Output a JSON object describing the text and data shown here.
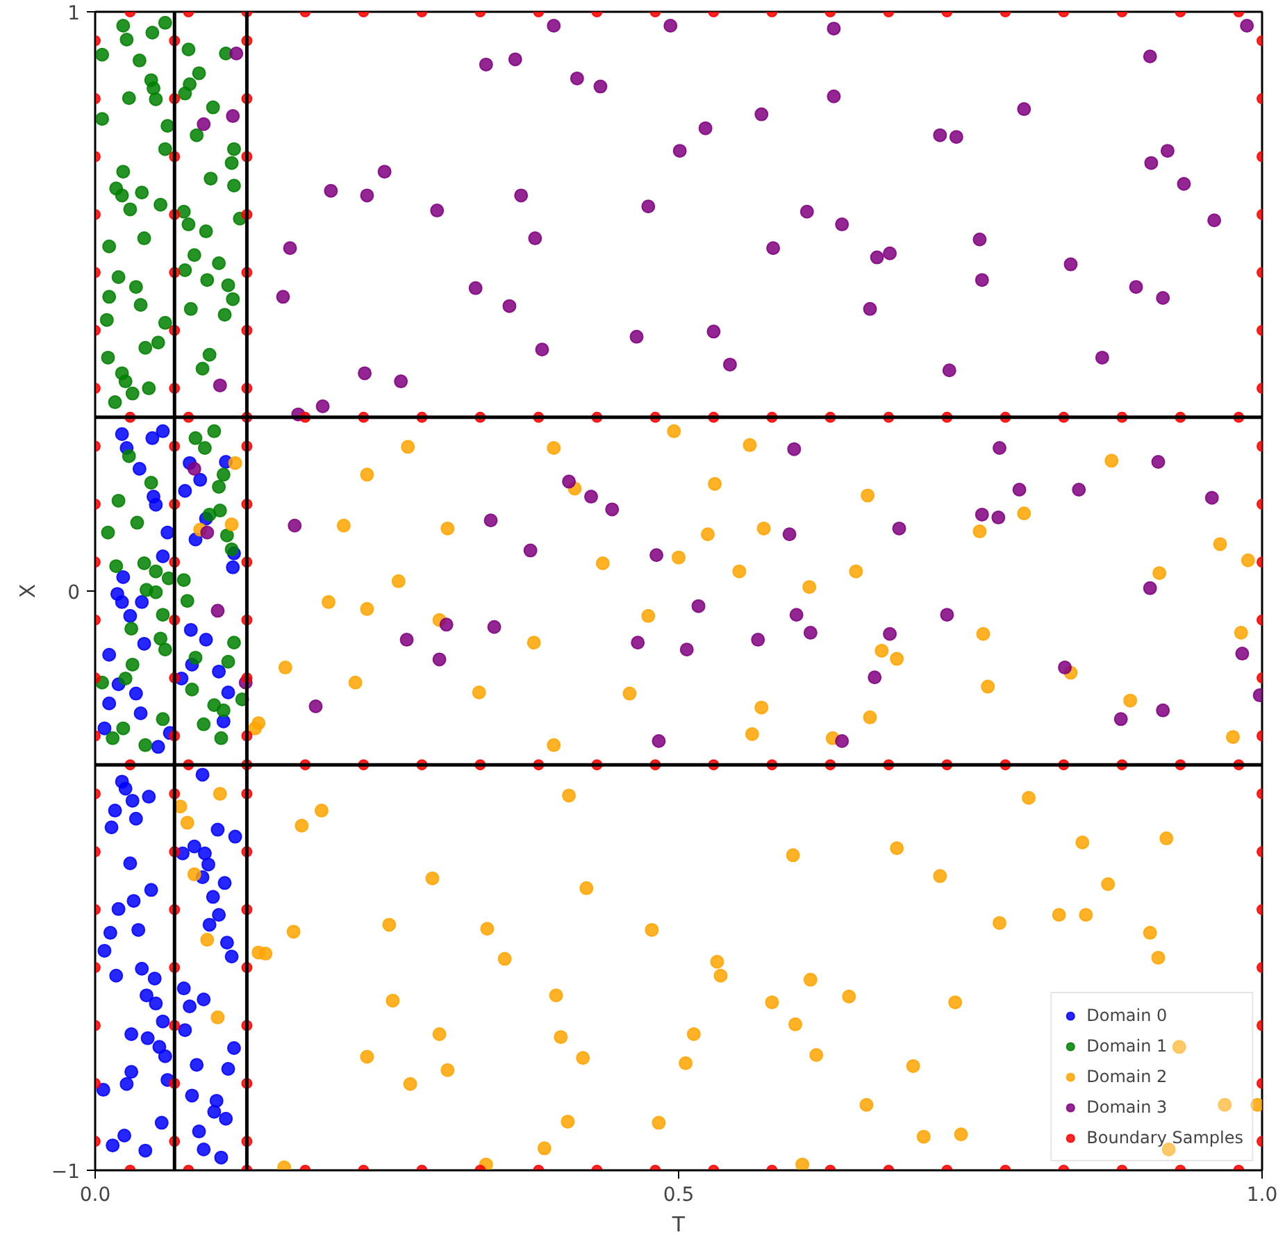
{
  "chart_data": {
    "type": "scatter",
    "xlabel": "T",
    "ylabel": "X",
    "xlim": [
      0,
      1
    ],
    "ylim": [
      -1,
      1
    ],
    "xticks": [
      {
        "value": 0,
        "label": "0.0"
      },
      0.5,
      {
        "value": 1,
        "label": "1.0"
      }
    ],
    "yticks": [
      {
        "value": -1,
        "label": "−1"
      },
      0,
      1
    ],
    "grid": false,
    "legend": "bottom right",
    "marker": "circle",
    "ref_lines": [
      {
        "axis": "x",
        "value": 0.068,
        "color": "#000000"
      },
      {
        "axis": "x",
        "value": 0.13,
        "color": "#000000"
      },
      {
        "axis": "y",
        "value": 0.3,
        "color": "#000000"
      },
      {
        "axis": "y",
        "value": -0.3,
        "color": "#000000"
      }
    ],
    "series": [
      {
        "name": "Domain 0",
        "color": "#0000ff",
        "x": [
          0.019,
          0.023,
          0.04,
          0.03,
          0.042,
          0.012,
          0.02,
          0.035,
          0.012,
          0.039,
          0.008,
          0.054,
          0.064,
          0.023,
          0.049,
          0.058,
          0.027,
          0.038,
          0.05,
          0.052,
          0.062,
          0.058,
          0.024,
          0.081,
          0.09,
          0.077,
          0.112,
          0.095,
          0.086,
          0.119,
          0.118,
          0.082,
          0.095,
          0.083,
          0.106,
          0.074,
          0.114,
          0.11,
          0.023,
          0.026,
          0.046,
          0.032,
          0.017,
          0.035,
          0.014,
          0.03,
          0.048,
          0.02,
          0.033,
          0.037,
          0.013,
          0.008,
          0.04,
          0.018,
          0.051,
          0.044,
          0.052,
          0.058,
          0.031,
          0.045,
          0.055,
          0.06,
          0.031,
          0.027,
          0.007,
          0.062,
          0.057,
          0.025,
          0.015,
          0.043,
          0.092,
          0.105,
          0.12,
          0.085,
          0.094,
          0.097,
          0.075,
          0.092,
          0.111,
          0.101,
          0.106,
          0.098,
          0.113,
          0.117,
          0.076,
          0.093,
          0.081,
          0.077,
          0.119,
          0.087,
          0.114,
          0.083,
          0.104,
          0.102,
          0.112,
          0.089,
          0.093,
          0.108
        ],
        "values": [
          -0.005,
          -0.019,
          -0.019,
          -0.043,
          -0.091,
          -0.11,
          -0.161,
          -0.177,
          -0.194,
          -0.211,
          -0.237,
          -0.269,
          -0.245,
          0.271,
          0.264,
          0.276,
          0.247,
          0.211,
          0.163,
          0.149,
          0.101,
          0.06,
          0.024,
          0.221,
          0.192,
          0.173,
          0.223,
          0.125,
          0.089,
          0.065,
          0.041,
          -0.067,
          -0.084,
          -0.127,
          -0.139,
          -0.151,
          -0.175,
          -0.225,
          -0.329,
          -0.341,
          -0.355,
          -0.362,
          -0.379,
          -0.393,
          -0.408,
          -0.47,
          -0.516,
          -0.549,
          -0.535,
          -0.585,
          -0.59,
          -0.621,
          -0.652,
          -0.664,
          -0.669,
          -0.698,
          -0.712,
          -0.743,
          -0.765,
          -0.772,
          -0.787,
          -0.803,
          -0.83,
          -0.851,
          -0.861,
          -0.844,
          -0.918,
          -0.94,
          -0.957,
          -0.966,
          -0.317,
          -0.412,
          -0.424,
          -0.441,
          -0.453,
          -0.472,
          -0.453,
          -0.494,
          -0.504,
          -0.528,
          -0.559,
          -0.576,
          -0.607,
          -0.631,
          -0.686,
          -0.705,
          -0.717,
          -0.758,
          -0.789,
          -0.818,
          -0.825,
          -0.871,
          -0.88,
          -0.899,
          -0.911,
          -0.933,
          -0.964,
          -0.978
        ]
      },
      {
        "name": "Domain 1",
        "color": "#008000",
        "x": [
          0.024,
          0.06,
          0.027,
          0.049,
          0.006,
          0.038,
          0.048,
          0.05,
          0.029,
          0.052,
          0.006,
          0.062,
          0.06,
          0.024,
          0.018,
          0.023,
          0.04,
          0.03,
          0.056,
          0.042,
          0.012,
          0.02,
          0.035,
          0.012,
          0.039,
          0.01,
          0.06,
          0.054,
          0.043,
          0.011,
          0.023,
          0.026,
          0.032,
          0.046,
          0.017,
          0.08,
          0.112,
          0.089,
          0.081,
          0.077,
          0.101,
          0.087,
          0.119,
          0.117,
          0.099,
          0.119,
          0.076,
          0.08,
          0.095,
          0.124,
          0.085,
          0.106,
          0.077,
          0.096,
          0.114,
          0.118,
          0.082,
          0.111,
          0.098,
          0.092,
          0.029,
          0.02,
          0.048,
          0.036,
          0.011,
          0.018,
          0.042,
          0.052,
          0.063,
          0.044,
          0.052,
          0.058,
          0.031,
          0.056,
          0.06,
          0.032,
          0.006,
          0.026,
          0.058,
          0.024,
          0.015,
          0.043,
          0.086,
          0.102,
          0.094,
          0.11,
          0.106,
          0.098,
          0.107,
          0.113,
          0.117,
          0.076,
          0.079,
          0.086,
          0.114,
          0.083,
          0.102,
          0.11,
          0.093,
          0.108,
          0.119,
          0.126
        ],
        "values": [
          0.976,
          0.981,
          0.952,
          0.964,
          0.926,
          0.916,
          0.882,
          0.868,
          0.851,
          0.849,
          0.815,
          0.803,
          0.763,
          0.724,
          0.695,
          0.683,
          0.688,
          0.659,
          0.667,
          0.609,
          0.595,
          0.542,
          0.525,
          0.508,
          0.494,
          0.468,
          0.463,
          0.429,
          0.42,
          0.403,
          0.376,
          0.362,
          0.341,
          0.35,
          0.326,
          0.935,
          0.928,
          0.894,
          0.875,
          0.859,
          0.835,
          0.787,
          0.763,
          0.739,
          0.712,
          0.7,
          0.655,
          0.633,
          0.621,
          0.643,
          0.58,
          0.566,
          0.554,
          0.537,
          0.528,
          0.504,
          0.487,
          0.477,
          0.408,
          0.384,
          0.233,
          0.156,
          0.187,
          0.118,
          0.101,
          0.043,
          0.048,
          0.034,
          0.022,
          0.002,
          -0.002,
          -0.041,
          -0.065,
          -0.082,
          -0.101,
          -0.127,
          -0.158,
          -0.151,
          -0.221,
          -0.237,
          -0.254,
          -0.266,
          0.264,
          0.276,
          0.247,
          0.201,
          0.18,
          0.132,
          0.139,
          0.096,
          0.072,
          0.019,
          -0.017,
          -0.115,
          -0.122,
          -0.17,
          -0.197,
          -0.206,
          -0.23,
          -0.254,
          -0.089,
          -0.187
        ]
      },
      {
        "name": "Domain 2",
        "color": "#ffa500",
        "x": [
          0.268,
          0.393,
          0.496,
          0.561,
          0.871,
          0.233,
          0.411,
          0.531,
          0.662,
          0.758,
          0.796,
          0.964,
          0.213,
          0.302,
          0.525,
          0.573,
          0.988,
          0.435,
          0.5,
          0.552,
          0.2,
          0.233,
          0.26,
          0.652,
          0.912,
          0.295,
          0.474,
          0.612,
          0.376,
          0.687,
          0.761,
          0.982,
          0.223,
          0.329,
          0.458,
          0.674,
          0.836,
          0.163,
          0.571,
          0.765,
          0.664,
          0.887,
          0.393,
          0.563,
          0.632,
          0.975,
          0.14,
          0.194,
          0.177,
          0.406,
          0.8,
          0.687,
          0.598,
          0.421,
          0.289,
          0.846,
          0.918,
          0.724,
          0.868,
          0.826,
          0.849,
          0.336,
          0.775,
          0.17,
          0.252,
          0.477,
          0.904,
          0.14,
          0.146,
          0.351,
          0.533,
          0.613,
          0.911,
          0.536,
          0.646,
          0.737,
          0.395,
          0.255,
          0.58,
          0.399,
          0.295,
          0.513,
          0.6,
          0.701,
          0.618,
          0.233,
          0.302,
          0.506,
          0.418,
          0.27,
          0.929,
          0.661,
          0.968,
          0.996,
          0.405,
          0.483,
          0.742,
          0.71,
          0.335,
          0.606,
          0.162,
          0.385,
          0.92,
          0.107,
          0.079,
          0.085,
          0.096,
          0.105,
          0.073,
          0.12,
          0.117,
          0.09,
          0.137
        ],
        "values": [
          0.249,
          0.247,
          0.276,
          0.252,
          0.225,
          0.201,
          0.177,
          0.185,
          0.165,
          0.103,
          0.134,
          0.081,
          0.113,
          0.108,
          0.098,
          0.108,
          0.053,
          0.048,
          0.058,
          0.034,
          -0.019,
          -0.031,
          0.017,
          0.034,
          0.031,
          -0.05,
          -0.043,
          0.007,
          -0.089,
          -0.117,
          -0.074,
          -0.072,
          -0.158,
          -0.175,
          -0.177,
          -0.103,
          -0.141,
          -0.132,
          -0.201,
          -0.165,
          -0.218,
          -0.189,
          -0.266,
          -0.247,
          -0.254,
          -0.252,
          -0.228,
          -0.379,
          -0.405,
          -0.353,
          -0.357,
          -0.444,
          -0.456,
          -0.513,
          -0.496,
          -0.434,
          -0.427,
          -0.492,
          -0.506,
          -0.559,
          -0.559,
          -0.583,
          -0.573,
          -0.588,
          -0.576,
          -0.585,
          -0.59,
          -0.624,
          -0.626,
          -0.635,
          -0.64,
          -0.671,
          -0.633,
          -0.664,
          -0.7,
          -0.71,
          -0.698,
          -0.707,
          -0.71,
          -0.77,
          -0.765,
          -0.765,
          -0.748,
          -0.82,
          -0.801,
          -0.804,
          -0.827,
          -0.815,
          -0.806,
          -0.851,
          -0.787,
          -0.887,
          -0.887,
          -0.887,
          -0.916,
          -0.918,
          -0.938,
          -0.942,
          -0.99,
          -0.99,
          -0.995,
          -0.962,
          -0.964,
          -0.35,
          -0.4,
          -0.489,
          -0.602,
          -0.736,
          -0.372,
          0.221,
          0.115,
          0.106,
          -0.237
        ]
      },
      {
        "name": "Domain 3",
        "color": "#800080",
        "x": [
          0.493,
          0.393,
          0.633,
          0.904,
          0.36,
          0.335,
          0.413,
          0.433,
          0.571,
          0.796,
          0.633,
          0.523,
          0.501,
          0.724,
          0.738,
          0.919,
          0.905,
          0.933,
          0.248,
          0.202,
          0.233,
          0.365,
          0.293,
          0.474,
          0.61,
          0.64,
          0.959,
          0.377,
          0.167,
          0.581,
          0.67,
          0.681,
          0.758,
          0.76,
          0.836,
          0.892,
          0.915,
          0.161,
          0.326,
          0.355,
          0.664,
          0.383,
          0.464,
          0.53,
          0.544,
          0.732,
          0.231,
          0.262,
          0.174,
          0.195,
          0.863,
          0.987,
          0.599,
          0.775,
          0.911,
          0.406,
          0.425,
          0.792,
          0.843,
          0.171,
          0.339,
          0.443,
          0.373,
          0.481,
          0.595,
          0.689,
          0.76,
          0.774,
          0.957,
          0.904,
          0.342,
          0.301,
          0.517,
          0.601,
          0.613,
          0.681,
          0.73,
          0.267,
          0.295,
          0.465,
          0.507,
          0.568,
          0.668,
          0.831,
          0.983,
          0.998,
          0.879,
          0.915,
          0.189,
          0.483,
          0.64,
          0.121,
          0.118,
          0.093,
          0.107,
          0.085,
          0.096,
          0.129,
          0.105
        ],
        "values": [
          0.976,
          0.976,
          0.971,
          0.923,
          0.918,
          0.909,
          0.885,
          0.871,
          0.823,
          0.832,
          0.854,
          0.799,
          0.76,
          0.787,
          0.784,
          0.76,
          0.739,
          0.703,
          0.724,
          0.691,
          0.683,
          0.683,
          0.657,
          0.664,
          0.655,
          0.633,
          0.64,
          0.609,
          0.592,
          0.592,
          0.576,
          0.583,
          0.607,
          0.537,
          0.564,
          0.525,
          0.506,
          0.508,
          0.523,
          0.492,
          0.487,
          0.417,
          0.439,
          0.448,
          0.391,
          0.381,
          0.376,
          0.362,
          0.305,
          0.319,
          0.403,
          0.976,
          0.245,
          0.247,
          0.223,
          0.189,
          0.163,
          0.175,
          0.175,
          0.113,
          0.122,
          0.141,
          0.07,
          0.062,
          0.098,
          0.108,
          0.132,
          0.127,
          0.161,
          0.005,
          -0.062,
          -0.058,
          -0.026,
          -0.041,
          -0.072,
          -0.074,
          -0.041,
          -0.084,
          -0.118,
          -0.089,
          -0.101,
          -0.084,
          -0.149,
          -0.132,
          -0.108,
          -0.18,
          -0.221,
          -0.206,
          -0.199,
          -0.259,
          -0.259,
          0.928,
          0.82,
          0.806,
          0.355,
          0.211,
          0.101,
          -0.158,
          -0.034
        ]
      },
      {
        "name": "Boundary Samples",
        "color": "#ff0000",
        "x": [
          0,
          0,
          0,
          0,
          0,
          0,
          0,
          0,
          0,
          0,
          0,
          0,
          0,
          0,
          0,
          0,
          0,
          0,
          0,
          0,
          0.068,
          0.068,
          0.068,
          0.068,
          0.068,
          0.068,
          0.068,
          0.068,
          0.068,
          0.068,
          0.068,
          0.068,
          0.068,
          0.068,
          0.068,
          0.068,
          0.068,
          0.068,
          0.068,
          0.068,
          0.13,
          0.13,
          0.13,
          0.13,
          0.13,
          0.13,
          0.13,
          0.13,
          0.13,
          0.13,
          0.13,
          0.13,
          0.13,
          0.13,
          0.13,
          0.13,
          0.13,
          0.13,
          0.13,
          0.13,
          1,
          1,
          1,
          1,
          1,
          1,
          1,
          1,
          1,
          1,
          1,
          1,
          1,
          1,
          1,
          1,
          1,
          1,
          1,
          1,
          0.03,
          0.08,
          0.13,
          0.18,
          0.23,
          0.28,
          0.33,
          0.38,
          0.43,
          0.48,
          0.53,
          0.58,
          0.63,
          0.68,
          0.73,
          0.78,
          0.83,
          0.88,
          0.93,
          0.98,
          0.03,
          0.08,
          0.13,
          0.18,
          0.23,
          0.28,
          0.33,
          0.38,
          0.43,
          0.48,
          0.53,
          0.58,
          0.63,
          0.68,
          0.73,
          0.78,
          0.83,
          0.88,
          0.93,
          0.98,
          0.03,
          0.08,
          0.13,
          0.18,
          0.23,
          0.28,
          0.33,
          0.38,
          0.43,
          0.48,
          0.53,
          0.58,
          0.63,
          0.68,
          0.73,
          0.78,
          0.83,
          0.88,
          0.93,
          0.98,
          0.03,
          0.08,
          0.13,
          0.18,
          0.23,
          0.28,
          0.33,
          0.38,
          0.43,
          0.48,
          0.53,
          0.58,
          0.63,
          0.68,
          0.73,
          0.78,
          0.83,
          0.88,
          0.93,
          0.98
        ],
        "values": [
          -0.95,
          -0.85,
          -0.75,
          -0.65,
          -0.55,
          -0.45,
          -0.35,
          -0.25,
          -0.15,
          -0.05,
          0.05,
          0.15,
          0.25,
          0.35,
          0.45,
          0.55,
          0.65,
          0.75,
          0.85,
          0.95,
          -0.95,
          -0.85,
          -0.75,
          -0.65,
          -0.55,
          -0.45,
          -0.35,
          -0.25,
          -0.15,
          -0.05,
          0.05,
          0.15,
          0.25,
          0.35,
          0.45,
          0.55,
          0.65,
          0.75,
          0.85,
          0.95,
          -0.95,
          -0.85,
          -0.75,
          -0.65,
          -0.55,
          -0.45,
          -0.35,
          -0.25,
          -0.15,
          -0.05,
          0.05,
          0.15,
          0.25,
          0.35,
          0.45,
          0.55,
          0.65,
          0.75,
          0.85,
          0.95,
          -0.95,
          -0.85,
          -0.75,
          -0.65,
          -0.55,
          -0.45,
          -0.35,
          -0.25,
          -0.15,
          -0.05,
          0.05,
          0.15,
          0.25,
          0.35,
          0.45,
          0.55,
          0.65,
          0.75,
          0.85,
          0.95,
          1,
          1,
          1,
          1,
          1,
          1,
          1,
          1,
          1,
          1,
          1,
          1,
          1,
          1,
          1,
          1,
          1,
          1,
          1,
          1,
          0.3,
          0.3,
          0.3,
          0.3,
          0.3,
          0.3,
          0.3,
          0.3,
          0.3,
          0.3,
          0.3,
          0.3,
          0.3,
          0.3,
          0.3,
          0.3,
          0.3,
          0.3,
          0.3,
          0.3,
          -0.3,
          -0.3,
          -0.3,
          -0.3,
          -0.3,
          -0.3,
          -0.3,
          -0.3,
          -0.3,
          -0.3,
          -0.3,
          -0.3,
          -0.3,
          -0.3,
          -0.3,
          -0.3,
          -0.3,
          -0.3,
          -0.3,
          -0.3,
          -1,
          -1,
          -1,
          -1,
          -1,
          -1,
          -1,
          -1,
          -1,
          -1,
          -1,
          -1,
          -1,
          -1,
          -1,
          -1,
          -1,
          -1,
          -1,
          -1
        ]
      }
    ]
  }
}
